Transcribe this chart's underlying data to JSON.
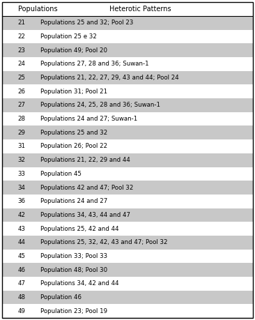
{
  "title_col1": "Populations",
  "title_col2": "Heterotic Patterns",
  "rows": [
    {
      "pop": "21",
      "pattern": "Populations 25 and 32; Pool 23",
      "shaded": true
    },
    {
      "pop": "22",
      "pattern": "Population 25 e 32",
      "shaded": false
    },
    {
      "pop": "23",
      "pattern": "Population 49; Pool 20",
      "shaded": true
    },
    {
      "pop": "24",
      "pattern": "Populations 27, 28 and 36; Suwan-1",
      "shaded": false
    },
    {
      "pop": "25",
      "pattern": "Populations 21, 22, 27, 29, 43 and 44; Pool 24",
      "shaded": true
    },
    {
      "pop": "26",
      "pattern": "Population 31; Pool 21",
      "shaded": false
    },
    {
      "pop": "27",
      "pattern": "Populations 24, 25, 28 and 36; Suwan-1",
      "shaded": true
    },
    {
      "pop": "28",
      "pattern": "Populations 24 and 27; Suwan-1",
      "shaded": false
    },
    {
      "pop": "29",
      "pattern": "Populations 25 and 32",
      "shaded": true
    },
    {
      "pop": "31",
      "pattern": "Population 26; Pool 22",
      "shaded": false
    },
    {
      "pop": "32",
      "pattern": "Populations 21, 22, 29 and 44",
      "shaded": true
    },
    {
      "pop": "33",
      "pattern": "Population 45",
      "shaded": false
    },
    {
      "pop": "34",
      "pattern": "Populations 42 and 47; Pool 32",
      "shaded": true
    },
    {
      "pop": "36",
      "pattern": "Populations 24 and 27",
      "shaded": false
    },
    {
      "pop": "42",
      "pattern": "Populations 34, 43, 44 and 47",
      "shaded": true
    },
    {
      "pop": "43",
      "pattern": "Populations 25, 42 and 44",
      "shaded": false
    },
    {
      "pop": "44",
      "pattern": "Populations 25, 32, 42, 43 and 47; Pool 32",
      "shaded": true
    },
    {
      "pop": "45",
      "pattern": "Population 33; Pool 33",
      "shaded": false
    },
    {
      "pop": "46",
      "pattern": "Population 48; Pool 30",
      "shaded": true
    },
    {
      "pop": "47",
      "pattern": "Populations 34, 42 and 44",
      "shaded": false
    },
    {
      "pop": "48",
      "pattern": "Population 46",
      "shaded": true
    },
    {
      "pop": "49",
      "pattern": "Population 23; Pool 19",
      "shaded": false
    }
  ],
  "shaded_color": "#c8c8c8",
  "white_color": "#ffffff",
  "border_color": "#000000",
  "font_size": 6.2,
  "header_font_size": 7.0,
  "figsize": [
    3.66,
    4.59
  ],
  "dpi": 100
}
